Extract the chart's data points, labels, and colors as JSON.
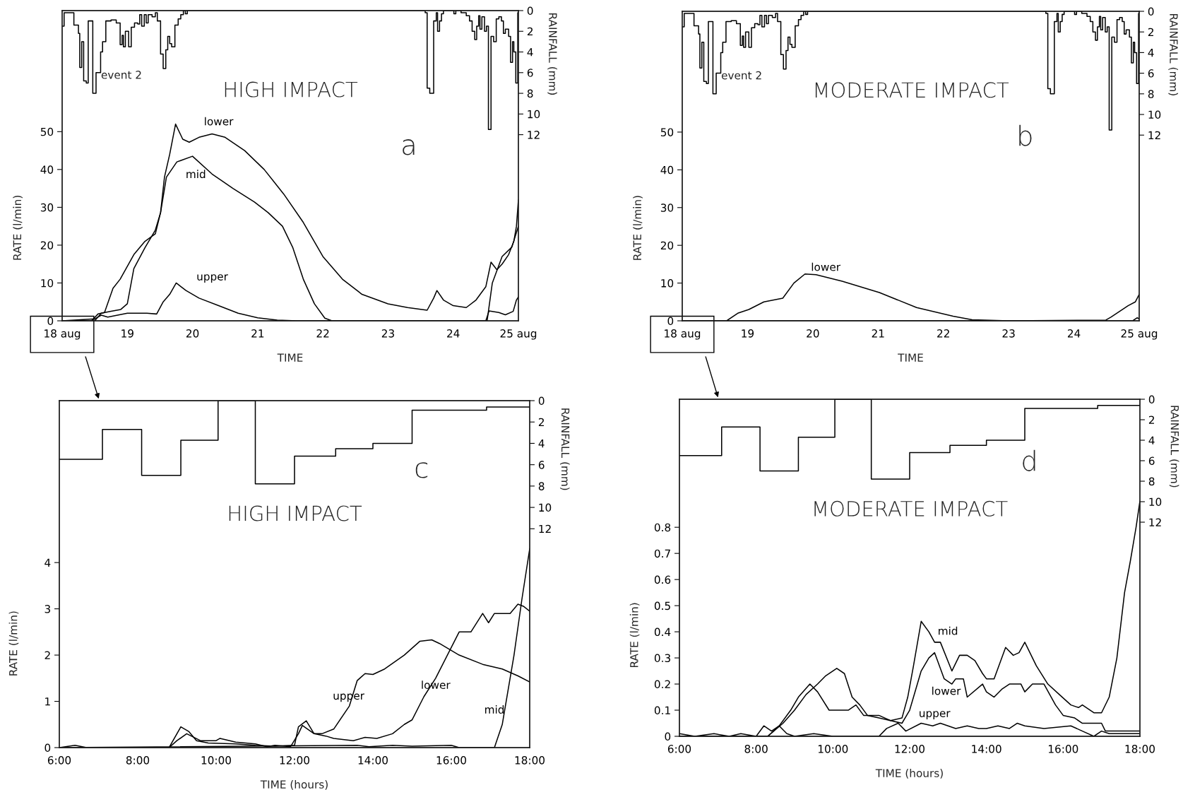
{
  "chart_data": [
    {
      "type": "line",
      "title": "HIGH IMPACT",
      "xlabel": "TIME",
      "ylabel": "RATE (l/min)",
      "y2label": "RAINFALL (mm)",
      "xlim": [
        18,
        25
      ],
      "xticks": [
        {
          "value": 18,
          "label": "18 aug"
        },
        19,
        20,
        21,
        22,
        23,
        24,
        {
          "value": 25,
          "label": "25 aug"
        }
      ],
      "ylim": [
        0,
        82
      ],
      "yticks": [
        0,
        10,
        20,
        30,
        40,
        50
      ],
      "y2lim": [
        30,
        0
      ],
      "y2ticks": [
        0,
        2,
        4,
        6,
        8,
        10,
        12
      ],
      "annotations": [
        "a",
        "event 2"
      ],
      "series": [
        {
          "name": "lower",
          "color": "#000000",
          "x": [
            18.0,
            18.45,
            18.55,
            18.65,
            18.78,
            18.89,
            19.1,
            19.27,
            19.43,
            19.51,
            19.57,
            19.65,
            19.74,
            19.85,
            19.95,
            20.1,
            20.3,
            20.5,
            20.8,
            21.1,
            21.4,
            21.7,
            22.0,
            22.3,
            22.6,
            23.0,
            23.3,
            23.6,
            23.7,
            23.75,
            23.85,
            24.0,
            24.2,
            24.35,
            24.5,
            24.58,
            24.67,
            24.75,
            24.85,
            24.93,
            24.97,
            25.0
          ],
          "values": [
            0,
            0,
            1.8,
            2.2,
            8.6,
            11,
            17.5,
            21,
            23,
            28.6,
            38,
            44,
            52,
            48,
            47.2,
            48.5,
            49.4,
            48.5,
            45,
            40,
            33.5,
            26,
            17,
            11,
            7,
            4.5,
            3.5,
            2.8,
            6,
            8,
            5.5,
            4,
            3.5,
            5.5,
            9,
            15.5,
            13.5,
            15,
            17.5,
            21,
            25,
            32
          ]
        },
        {
          "name": "mid",
          "color": "#000000",
          "x": [
            18.0,
            18.5,
            18.6,
            18.75,
            18.9,
            19.0,
            19.1,
            19.27,
            19.43,
            19.51,
            19.6,
            19.76,
            20.0,
            20.3,
            20.62,
            20.95,
            21.16,
            21.38,
            21.54,
            21.7,
            21.87,
            22.03,
            22.14,
            24.52,
            24.6,
            24.75,
            24.9,
            25.0
          ],
          "values": [
            0,
            0,
            2,
            2.5,
            3,
            4.5,
            13.8,
            19.3,
            24,
            28.6,
            38,
            42,
            43.5,
            38.8,
            35,
            31.4,
            28.6,
            25,
            19.3,
            11,
            4.5,
            0.7,
            0,
            0,
            10,
            17,
            19.5,
            25
          ]
        },
        {
          "name": "upper",
          "color": "#000000",
          "x": [
            18.0,
            18.5,
            18.6,
            18.7,
            19.0,
            19.3,
            19.45,
            19.55,
            19.65,
            19.75,
            19.9,
            20.1,
            20.4,
            20.7,
            21.0,
            21.3,
            21.6,
            24.5,
            24.55,
            24.7,
            24.8,
            24.92,
            24.97,
            25.0
          ],
          "values": [
            0,
            0.5,
            1.5,
            1.0,
            2,
            2,
            1.8,
            5,
            7,
            10,
            8,
            6,
            4,
            2,
            0.8,
            0.2,
            0,
            0,
            2.6,
            2.2,
            1.6,
            2.5,
            5.5,
            6.3
          ]
        },
        {
          "type": "step",
          "axis": "y2",
          "color": "#000000",
          "x": [
            18.0,
            18.03,
            18.18,
            18.25,
            18.27,
            18.3,
            18.33,
            18.37,
            18.4,
            18.47,
            18.52,
            18.59,
            18.62,
            18.67,
            18.75,
            18.83,
            18.89,
            18.92,
            18.94,
            18.97,
            19.02,
            19.06,
            19.11,
            19.16,
            19.19,
            19.22,
            19.26,
            19.29,
            19.32,
            19.38,
            19.43,
            19.46,
            19.51,
            19.55,
            19.59,
            19.62,
            19.65,
            19.68,
            19.73,
            19.78,
            19.82,
            19.86,
            19.89,
            19.92,
            23.57,
            23.6,
            23.64,
            23.7,
            23.74,
            23.76,
            23.79,
            23.82,
            23.85,
            24.01,
            24.04,
            24.12,
            24.2,
            24.25,
            24.29,
            24.33,
            24.36,
            24.39,
            24.41,
            24.44,
            24.48,
            24.51,
            24.54,
            24.58,
            24.62,
            24.66,
            24.7,
            24.74,
            24.77,
            24.8,
            24.85,
            24.88,
            24.91,
            24.93,
            24.96,
            24.99,
            25.0
          ],
          "values": [
            1.5,
            0.2,
            1.4,
            2.2,
            5.5,
            3.0,
            6.8,
            7.0,
            1.0,
            8.0,
            6.0,
            4.0,
            3.0,
            1.0,
            0.9,
            1.2,
            3.3,
            2.4,
            3.5,
            2.0,
            3.5,
            1.6,
            1.2,
            1.3,
            0.4,
            1.5,
            0.4,
            1.2,
            0.4,
            0.6,
            0.2,
            1.0,
            4.2,
            5.6,
            3.8,
            2.5,
            3.2,
            3.5,
            1.4,
            0.8,
            0.4,
            0.0,
            0.3,
            0,
            0.2,
            7.5,
            8.0,
            1.0,
            0.2,
            2.0,
            1.0,
            0.3,
            0,
            0.3,
            0,
            0.2,
            0.5,
            1.0,
            2.0,
            2.8,
            1.5,
            0.5,
            1.8,
            0.6,
            2.0,
            1.5,
            11.5,
            2.5,
            3.0,
            0.8,
            0.6,
            1.0,
            2.2,
            1.8,
            2.5,
            5.0,
            3.0,
            4.0,
            7.0,
            0.2,
            0
          ]
        }
      ]
    },
    {
      "type": "line",
      "title": "MODERATE IMPACT",
      "xlabel": "TIME",
      "ylabel": "RATE (l/min)",
      "y2label": "RAINFALL (mm)",
      "xlim": [
        18,
        25
      ],
      "xticks": [
        {
          "value": 18,
          "label": "18 aug"
        },
        19,
        20,
        21,
        22,
        23,
        24,
        {
          "value": 25,
          "label": "25 aug"
        }
      ],
      "ylim": [
        0,
        82
      ],
      "yticks": [
        0,
        10,
        20,
        30,
        40,
        50
      ],
      "y2lim": [
        30,
        0
      ],
      "y2ticks": [
        0,
        2,
        4,
        6,
        8,
        10,
        12
      ],
      "annotations": [
        "b",
        "event 2"
      ],
      "series": [
        {
          "name": "lower",
          "color": "#000000",
          "x": [
            18.0,
            18.68,
            18.85,
            19.02,
            19.25,
            19.54,
            19.71,
            19.88,
            20.05,
            20.45,
            21.02,
            21.59,
            22.15,
            22.44,
            23.0,
            24.49,
            24.57,
            24.83,
            24.94,
            25.0
          ],
          "values": [
            0,
            0,
            2,
            3,
            5,
            6,
            10,
            12.4,
            12.2,
            10.5,
            7.5,
            3.5,
            1.2,
            0.3,
            0,
            0.2,
            1,
            4,
            5,
            7
          ]
        },
        {
          "color": "#000000",
          "x": [
            18.0,
            24.9,
            24.97,
            25.0
          ],
          "values": [
            0,
            0,
            0.8,
            0.5
          ]
        },
        {
          "type": "step",
          "axis": "y2",
          "color": "#000000",
          "x": [
            18.0,
            18.03,
            18.18,
            18.25,
            18.27,
            18.3,
            18.33,
            18.37,
            18.4,
            18.47,
            18.52,
            18.59,
            18.62,
            18.67,
            18.75,
            18.83,
            18.89,
            18.92,
            18.94,
            18.97,
            19.02,
            19.06,
            19.11,
            19.16,
            19.19,
            19.22,
            19.26,
            19.29,
            19.32,
            19.38,
            19.43,
            19.46,
            19.51,
            19.55,
            19.59,
            19.62,
            19.65,
            19.68,
            19.73,
            19.78,
            19.82,
            19.86,
            19.89,
            19.92,
            23.57,
            23.6,
            23.64,
            23.7,
            23.74,
            23.76,
            23.79,
            23.82,
            23.85,
            24.01,
            24.04,
            24.12,
            24.2,
            24.25,
            24.29,
            24.33,
            24.36,
            24.39,
            24.41,
            24.44,
            24.48,
            24.51,
            24.54,
            24.58,
            24.62,
            24.66,
            24.7,
            24.74,
            24.77,
            24.8,
            24.85,
            24.88,
            24.91,
            24.93,
            24.96,
            24.99,
            25.0
          ],
          "values": [
            1.5,
            0.2,
            1.4,
            2.2,
            5.5,
            3.0,
            6.8,
            7.0,
            1.0,
            8.0,
            6.0,
            4.0,
            3.0,
            1.0,
            0.9,
            1.2,
            3.3,
            2.4,
            3.5,
            2.0,
            3.5,
            1.6,
            1.2,
            1.3,
            0.4,
            1.5,
            0.4,
            1.2,
            0.4,
            0.6,
            0.2,
            1.0,
            4.2,
            5.6,
            3.8,
            2.5,
            3.2,
            3.5,
            1.4,
            0.8,
            0.4,
            0.0,
            0.3,
            0,
            0.2,
            7.5,
            8.0,
            1.0,
            0.2,
            2.0,
            1.0,
            0.3,
            0,
            0.3,
            0,
            0.2,
            0.5,
            1.0,
            2.0,
            2.8,
            1.5,
            0.5,
            1.8,
            0.6,
            2.0,
            1.5,
            11.5,
            2.5,
            3.0,
            0.8,
            0.6,
            1.0,
            2.2,
            1.8,
            2.5,
            5.0,
            3.0,
            4.0,
            7.0,
            0.2,
            0
          ]
        }
      ]
    },
    {
      "type": "line",
      "title": "HIGH IMPACT",
      "xlabel": "TIME (hours)",
      "ylabel": "RATE (l/min)",
      "y2label": "RAINFALL (mm)",
      "xlim": [
        6,
        18
      ],
      "xticks": [
        {
          "value": 6,
          "label": "6:00"
        },
        {
          "value": 8,
          "label": "8:00"
        },
        {
          "value": 10,
          "label": "10:00"
        },
        {
          "value": 12,
          "label": "12:00"
        },
        {
          "value": 14,
          "label": "14:00"
        },
        {
          "value": 16,
          "label": "16:00"
        },
        {
          "value": 18,
          "label": "18:00"
        }
      ],
      "ylim": [
        0,
        7.5
      ],
      "yticks": [
        0,
        1,
        2,
        3,
        4
      ],
      "y2lim": [
        32.5,
        0
      ],
      "y2ticks": [
        0,
        2,
        4,
        6,
        8,
        10,
        12
      ],
      "annotations": [
        "c"
      ],
      "series": [
        {
          "name": "upper",
          "color": "#000000",
          "x": [
            6.0,
            6.4,
            6.7,
            8.8,
            9.0,
            9.25,
            9.6,
            10.0,
            10.1,
            10.5,
            11.0,
            11.3,
            11.5,
            11.9,
            12.1,
            12.2,
            12.5,
            12.7,
            13.0,
            13.4,
            13.6,
            13.8,
            14.0,
            14.3,
            14.8,
            15.2,
            15.5,
            15.7,
            16.2,
            16.8,
            17.3,
            17.7,
            18.0
          ],
          "values": [
            0,
            0.05,
            0,
            0,
            0.15,
            0.3,
            0.15,
            0.15,
            0.2,
            0.12,
            0.08,
            0.02,
            0.05,
            0.02,
            0.3,
            0.48,
            0.3,
            0.3,
            0.4,
            0.9,
            1.45,
            1.6,
            1.58,
            1.7,
            2.0,
            2.3,
            2.33,
            2.25,
            2.0,
            1.8,
            1.7,
            1.55,
            1.42
          ]
        },
        {
          "name": "lower",
          "color": "#000000",
          "x": [
            6.0,
            8.8,
            9.1,
            9.3,
            9.5,
            9.8,
            10.5,
            11.0,
            11.5,
            12.0,
            12.1,
            12.3,
            12.5,
            12.8,
            13.0,
            13.5,
            13.8,
            14.1,
            14.5,
            14.8,
            15.0,
            15.3,
            15.6,
            15.9,
            16.2,
            16.5,
            16.8,
            16.95,
            17.1,
            17.5,
            17.7,
            17.85,
            18.0
          ],
          "values": [
            0,
            0,
            0.45,
            0.35,
            0.15,
            0.1,
            0.08,
            0.05,
            0.03,
            0.05,
            0.45,
            0.58,
            0.3,
            0.25,
            0.2,
            0.15,
            0.22,
            0.2,
            0.3,
            0.5,
            0.6,
            1.1,
            1.5,
            2.0,
            2.5,
            2.5,
            2.9,
            2.7,
            2.9,
            2.9,
            3.1,
            3.05,
            2.95
          ]
        },
        {
          "name": "mid",
          "color": "#000000",
          "x": [
            6.0,
            13.6,
            13.9,
            14.5,
            15.0,
            16.0,
            16.2,
            17.1,
            17.3,
            17.6,
            17.8,
            18.0
          ],
          "values": [
            0,
            0.05,
            0.02,
            0.05,
            0.03,
            0.05,
            0,
            0,
            0.5,
            2.0,
            3.2,
            4.3
          ]
        },
        {
          "type": "step",
          "axis": "y2",
          "color": "#000000",
          "x": [
            6.0,
            7.1,
            8.1,
            9.1,
            10.05,
            11.0,
            12.0,
            13.05,
            14.0,
            15.0,
            16.9,
            18.0
          ],
          "values": [
            5.5,
            2.7,
            7.0,
            3.7,
            0,
            7.8,
            5.2,
            4.5,
            4.0,
            0.9,
            0.6,
            0.6
          ]
        }
      ]
    },
    {
      "type": "line",
      "title": "MODERATE IMPACT",
      "xlabel": "TIME (hours)",
      "ylabel": "RATE (l/min)",
      "y2label": "RAINFALL (mm)",
      "xlim": [
        6,
        18
      ],
      "xticks": [
        {
          "value": 6,
          "label": "6:00"
        },
        {
          "value": 8,
          "label": "8:00"
        },
        {
          "value": 10,
          "label": "10:00"
        },
        {
          "value": 12,
          "label": "12:00"
        },
        {
          "value": 14,
          "label": "14:00"
        },
        {
          "value": 16,
          "label": "16:00"
        },
        {
          "value": 18,
          "label": "18:00"
        }
      ],
      "ylim": [
        0,
        1.29
      ],
      "yticks": [
        0,
        0.1,
        0.2,
        0.3,
        0.4,
        0.5,
        0.6,
        0.7,
        0.8
      ],
      "y2lim": [
        32.9,
        0
      ],
      "y2ticks": [
        0,
        2,
        4,
        6,
        8,
        10,
        12
      ],
      "annotations": [
        "d"
      ],
      "series": [
        {
          "name": "mid",
          "color": "#000000",
          "x": [
            6.0,
            8.3,
            8.7,
            9.0,
            9.3,
            9.6,
            9.8,
            10.1,
            10.3,
            10.5,
            10.7,
            10.9,
            11.2,
            11.5,
            11.8,
            11.95,
            12.1,
            12.3,
            12.5,
            12.65,
            12.8,
            13.1,
            13.3,
            13.5,
            13.7,
            13.9,
            14.0,
            14.2,
            14.5,
            14.7,
            14.85,
            15.0,
            15.3,
            15.6,
            15.9,
            16.2,
            16.4,
            16.5,
            16.8,
            17.0,
            17.2,
            17.4,
            17.6,
            17.75,
            17.9,
            18.0
          ],
          "values": [
            0,
            0,
            0.05,
            0.1,
            0.16,
            0.2,
            0.23,
            0.26,
            0.24,
            0.15,
            0.12,
            0.08,
            0.07,
            0.06,
            0.07,
            0.15,
            0.27,
            0.44,
            0.4,
            0.36,
            0.36,
            0.25,
            0.31,
            0.31,
            0.29,
            0.24,
            0.22,
            0.22,
            0.34,
            0.31,
            0.32,
            0.36,
            0.27,
            0.2,
            0.16,
            0.12,
            0.11,
            0.12,
            0.09,
            0.09,
            0.15,
            0.3,
            0.55,
            0.67,
            0.8,
            0.9
          ]
        },
        {
          "name": "lower",
          "color": "#000000",
          "x": [
            6.0,
            8.3,
            8.6,
            8.9,
            9.1,
            9.4,
            9.6,
            9.9,
            10.4,
            10.6,
            10.8,
            11.2,
            11.5,
            11.8,
            12.0,
            12.3,
            12.5,
            12.65,
            12.9,
            13.1,
            13.2,
            13.4,
            13.5,
            13.9,
            14.0,
            14.2,
            14.4,
            14.6,
            14.9,
            15.0,
            15.2,
            15.5,
            15.8,
            16.0,
            16.3,
            16.5,
            17.0,
            17.1,
            18.0
          ],
          "values": [
            0,
            0,
            0.04,
            0.1,
            0.15,
            0.2,
            0.17,
            0.1,
            0.1,
            0.12,
            0.08,
            0.08,
            0.06,
            0.05,
            0.1,
            0.25,
            0.3,
            0.32,
            0.22,
            0.2,
            0.22,
            0.22,
            0.15,
            0.2,
            0.17,
            0.15,
            0.18,
            0.2,
            0.2,
            0.17,
            0.2,
            0.2,
            0.12,
            0.08,
            0.07,
            0.05,
            0.05,
            0.02,
            0.02
          ]
        },
        {
          "name": "upper",
          "color": "#000000",
          "x": [
            6.0,
            6.4,
            6.9,
            7.3,
            7.6,
            8.0,
            8.2,
            8.4,
            8.6,
            8.8,
            9.0,
            9.5,
            10.0,
            11.2,
            11.4,
            11.7,
            11.9,
            12.3,
            12.6,
            12.8,
            13.2,
            13.5,
            13.8,
            14.0,
            14.3,
            14.6,
            14.8,
            15.0,
            15.5,
            16.2,
            16.5,
            16.8,
            17.0,
            17.2,
            18.0
          ],
          "values": [
            0.01,
            0,
            0.01,
            0,
            0.01,
            0,
            0.04,
            0.02,
            0.04,
            0.01,
            0,
            0.01,
            0,
            0,
            0.03,
            0.05,
            0.02,
            0.05,
            0.04,
            0.05,
            0.03,
            0.04,
            0.03,
            0.03,
            0.04,
            0.03,
            0.05,
            0.04,
            0.03,
            0.04,
            0.02,
            0,
            0.02,
            0.01,
            0.01
          ]
        },
        {
          "type": "step",
          "axis": "y2",
          "color": "#000000",
          "x": [
            6.0,
            7.1,
            8.1,
            9.1,
            10.05,
            11.0,
            12.0,
            13.05,
            14.0,
            15.0,
            16.9,
            18.0
          ],
          "values": [
            5.5,
            2.7,
            7.0,
            3.7,
            0,
            7.8,
            5.2,
            4.5,
            4.0,
            0.9,
            0.6,
            0.6
          ]
        }
      ]
    }
  ]
}
